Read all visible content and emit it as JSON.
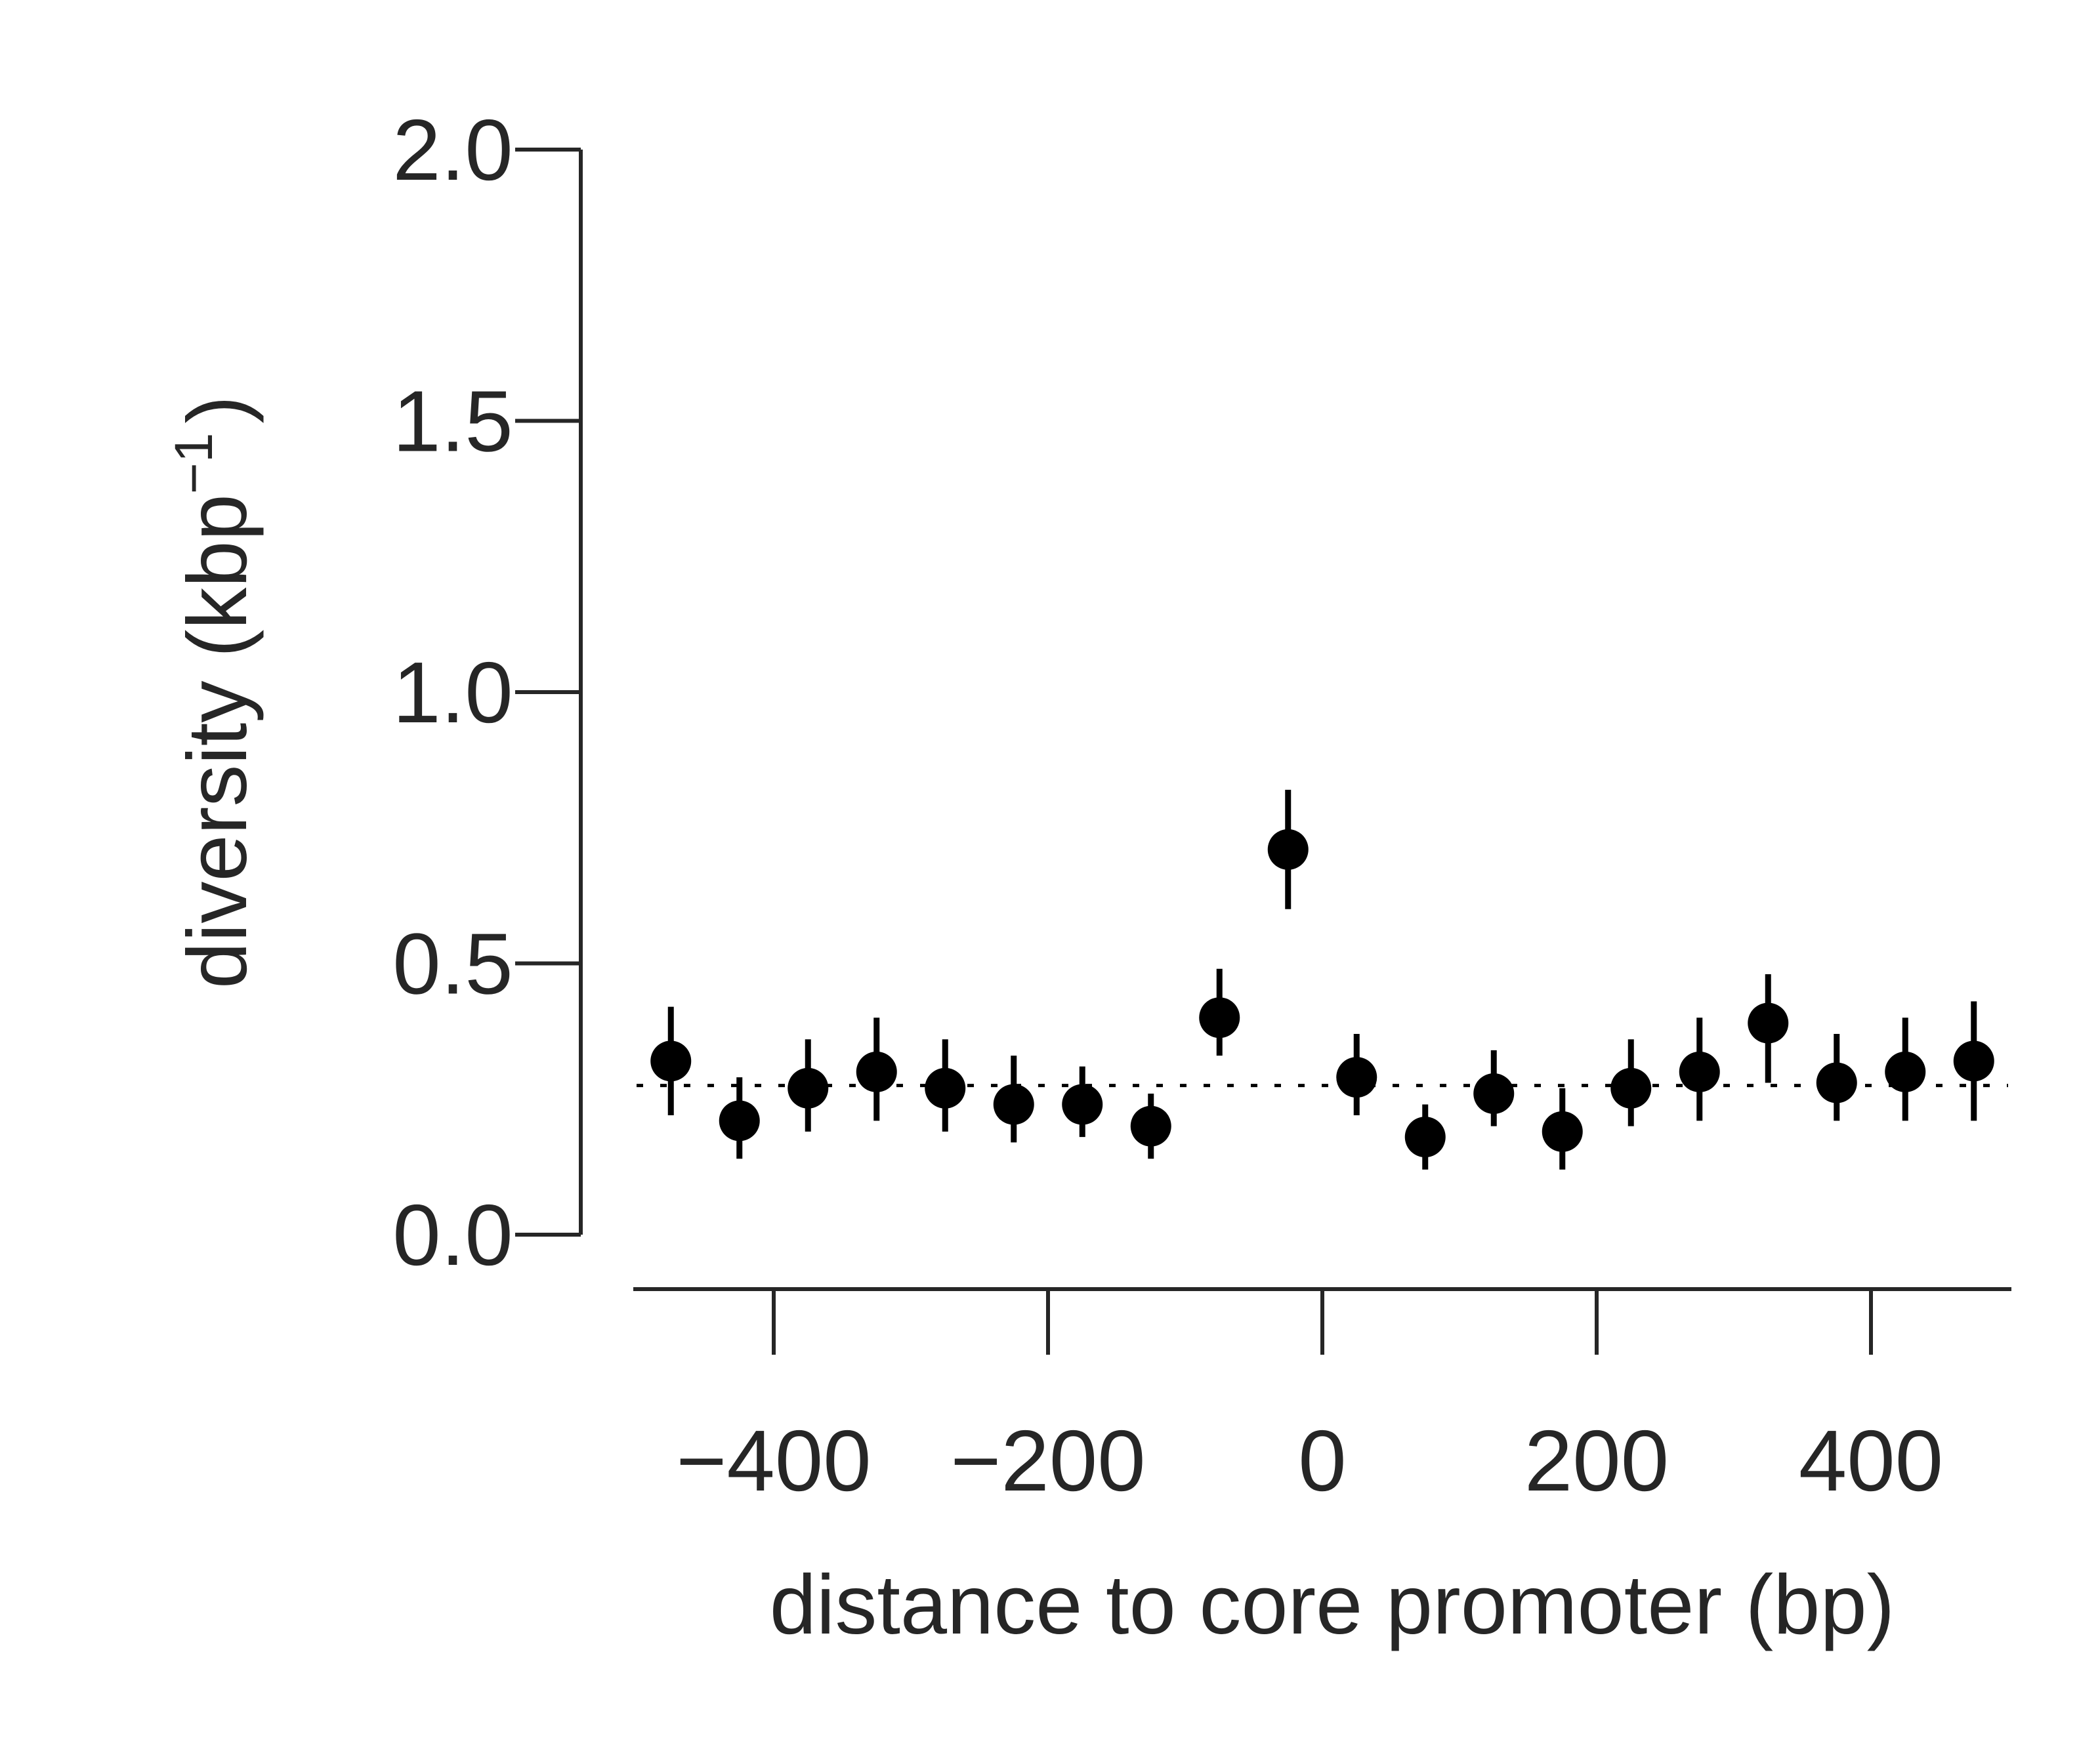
{
  "chart_data": {
    "type": "scatter",
    "xlabel": "distance to core promoter (bp)",
    "ylabel": "diversity (kbp",
    "ylabel_sup": "−1",
    "ylabel_close": ")",
    "xlim": [
      -500,
      500
    ],
    "ylim": [
      0.0,
      2.0
    ],
    "x_ticks": [
      -400,
      -200,
      0,
      200,
      400
    ],
    "x_tick_labels": [
      "−400",
      "−200",
      "0",
      "200",
      "400"
    ],
    "y_ticks": [
      0.0,
      0.5,
      1.0,
      1.5,
      2.0
    ],
    "y_tick_labels": [
      "0.0",
      "0.5",
      "1.0",
      "1.5",
      "2.0"
    ],
    "reference_line_y": 0.275,
    "grid": false,
    "legend": "none",
    "points": [
      {
        "x": -475,
        "y": 0.32,
        "lo": 0.22,
        "hi": 0.42
      },
      {
        "x": -425,
        "y": 0.21,
        "lo": 0.14,
        "hi": 0.29
      },
      {
        "x": -375,
        "y": 0.27,
        "lo": 0.19,
        "hi": 0.36
      },
      {
        "x": -325,
        "y": 0.3,
        "lo": 0.21,
        "hi": 0.4
      },
      {
        "x": -275,
        "y": 0.27,
        "lo": 0.19,
        "hi": 0.36
      },
      {
        "x": -225,
        "y": 0.24,
        "lo": 0.17,
        "hi": 0.33
      },
      {
        "x": -175,
        "y": 0.24,
        "lo": 0.18,
        "hi": 0.31
      },
      {
        "x": -125,
        "y": 0.2,
        "lo": 0.14,
        "hi": 0.26
      },
      {
        "x": -75,
        "y": 0.4,
        "lo": 0.33,
        "hi": 0.49
      },
      {
        "x": -25,
        "y": 0.71,
        "lo": 0.6,
        "hi": 0.82
      },
      {
        "x": 25,
        "y": 0.29,
        "lo": 0.22,
        "hi": 0.37
      },
      {
        "x": 75,
        "y": 0.18,
        "lo": 0.12,
        "hi": 0.24
      },
      {
        "x": 125,
        "y": 0.26,
        "lo": 0.2,
        "hi": 0.34
      },
      {
        "x": 175,
        "y": 0.19,
        "lo": 0.12,
        "hi": 0.27
      },
      {
        "x": 225,
        "y": 0.27,
        "lo": 0.2,
        "hi": 0.36
      },
      {
        "x": 275,
        "y": 0.3,
        "lo": 0.21,
        "hi": 0.4
      },
      {
        "x": 325,
        "y": 0.39,
        "lo": 0.28,
        "hi": 0.48
      },
      {
        "x": 375,
        "y": 0.28,
        "lo": 0.21,
        "hi": 0.37
      },
      {
        "x": 425,
        "y": 0.3,
        "lo": 0.21,
        "hi": 0.4
      },
      {
        "x": 475,
        "y": 0.32,
        "lo": 0.21,
        "hi": 0.43
      }
    ]
  }
}
